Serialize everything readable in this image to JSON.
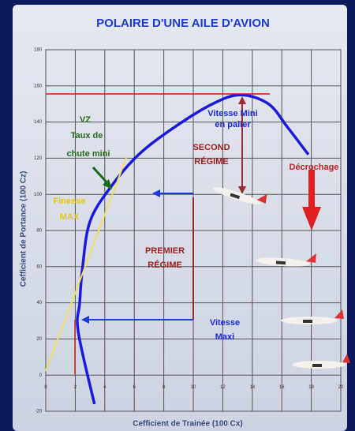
{
  "chart_data": {
    "type": "line",
    "title": "POLAIRE D'UNE AILE D'AVION",
    "xlabel": "Cefficient de Trainée (100 Cx)",
    "ylabel": "Cefficient de Portance (100 Cz)",
    "x": [
      3.3,
      2.2,
      2.3,
      2.5,
      3.0,
      4.4,
      6.3,
      8.7,
      11.3,
      13.2,
      15.1,
      16.4,
      17.8
    ],
    "values": [
      -16,
      24,
      40,
      60,
      85,
      104,
      122,
      137,
      150,
      155,
      150,
      137,
      122
    ],
    "color": "#1a1adc",
    "xlim": [
      0,
      20
    ],
    "xticks": [
      0,
      2,
      4,
      6,
      8,
      10,
      12,
      14,
      16,
      18,
      20
    ],
    "ylim": [
      -20,
      180
    ],
    "yticks": [
      -20,
      0,
      20,
      40,
      60,
      80,
      100,
      120,
      140,
      160,
      180
    ],
    "grid": true,
    "annotations": [
      "VZ",
      "Taux de",
      "chute mini",
      "Finesse",
      "MAX",
      "SECOND",
      "RÉGIME",
      "Vitesse Mini",
      "en palier",
      "Décrochage",
      "PREMIER",
      "RÉGIME",
      "Vitesse",
      "Maxi"
    ]
  }
}
